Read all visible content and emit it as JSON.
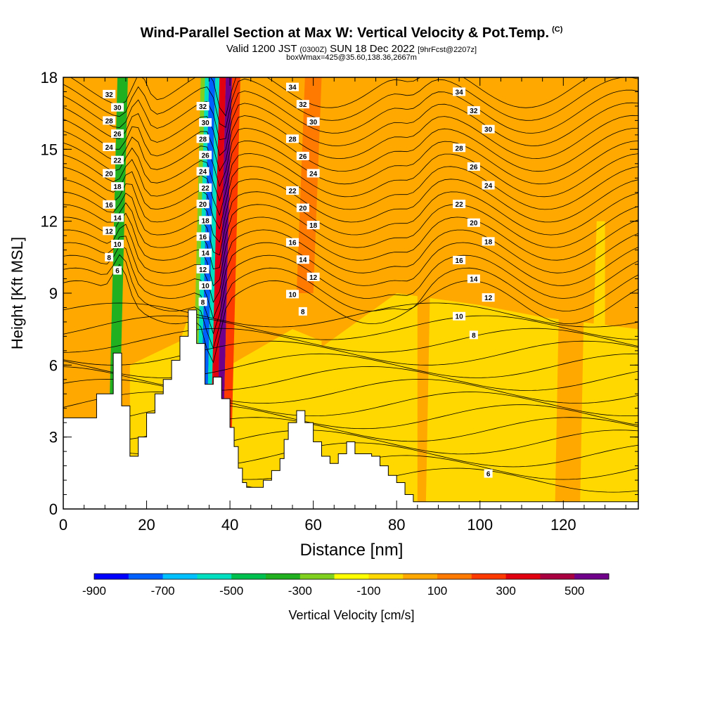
{
  "chart_data": {
    "type": "heatmap",
    "title": "Wind-Parallel Section at Max W: Vertical Velocity & Pot.Temp.",
    "title_mark": "(C)",
    "subtitle_main_a": "Valid 1200 JST",
    "subtitle_small_a": "(0300Z)",
    "subtitle_main_b": "SUN 18 Dec 2022",
    "subtitle_small_b": "[9hrFcst@2207z]",
    "subtitle2": "boxWmax=425@35.60,138.36,2667m",
    "xlabel": "Distance [nm]",
    "ylabel": "Height [Kft MSL]",
    "xlim": [
      0,
      138
    ],
    "ylim": [
      0,
      18
    ],
    "x_ticks": [
      0,
      20,
      40,
      60,
      80,
      100,
      120
    ],
    "y_ticks": [
      0,
      3,
      6,
      9,
      12,
      15,
      18
    ],
    "colorbar": {
      "label": "Vertical Velocity [cm/s]",
      "tick_labels": [
        "-900",
        "-700",
        "-500",
        "-300",
        "-100",
        "100",
        "300",
        "500"
      ],
      "bins": [
        -900,
        -800,
        -700,
        -600,
        -500,
        -400,
        -300,
        -200,
        -100,
        0,
        100,
        200,
        300,
        400,
        500,
        600
      ],
      "colors": [
        "#0000ff",
        "#0060ff",
        "#00c0ff",
        "#00e0c0",
        "#00c050",
        "#20b020",
        "#80d020",
        "#ffff00",
        "#ffd800",
        "#ffa800",
        "#ff7a00",
        "#ff3a00",
        "#e00010",
        "#a80040",
        "#70008a"
      ]
    },
    "terrain": [
      [
        0,
        3.8
      ],
      [
        8,
        3.8
      ],
      [
        8,
        4.8
      ],
      [
        12,
        4.8
      ],
      [
        12,
        6.5
      ],
      [
        14,
        6.5
      ],
      [
        14,
        4.3
      ],
      [
        16,
        4.3
      ],
      [
        16,
        2.2
      ],
      [
        18,
        2.2
      ],
      [
        18,
        3
      ],
      [
        20,
        3
      ],
      [
        20,
        4
      ],
      [
        22,
        4
      ],
      [
        22,
        4.8
      ],
      [
        24,
        4.8
      ],
      [
        24,
        5.4
      ],
      [
        26,
        5.4
      ],
      [
        26,
        6.2
      ],
      [
        28,
        6.2
      ],
      [
        28,
        7.2
      ],
      [
        30,
        7.2
      ],
      [
        30,
        8.3
      ],
      [
        32,
        8.3
      ],
      [
        32,
        6.9
      ],
      [
        34,
        6.9
      ],
      [
        34,
        5.2
      ],
      [
        36,
        5.2
      ],
      [
        36,
        5.5
      ],
      [
        38,
        5.5
      ],
      [
        38,
        4.6
      ],
      [
        40,
        4.6
      ],
      [
        40,
        3.4
      ],
      [
        41,
        3.4
      ],
      [
        41,
        2.6
      ],
      [
        42,
        2.6
      ],
      [
        42,
        1.7
      ],
      [
        43,
        1.7
      ],
      [
        43,
        1.1
      ],
      [
        44,
        1.1
      ],
      [
        44,
        0.9
      ],
      [
        48,
        0.9
      ],
      [
        48,
        1.2
      ],
      [
        50,
        1.2
      ],
      [
        50,
        1.6
      ],
      [
        52,
        1.6
      ],
      [
        52,
        2.1
      ],
      [
        53,
        2.1
      ],
      [
        53,
        2.9
      ],
      [
        54,
        2.9
      ],
      [
        54,
        3.6
      ],
      [
        56,
        3.6
      ],
      [
        56,
        4.1
      ],
      [
        58,
        4.1
      ],
      [
        58,
        3.6
      ],
      [
        60,
        3.6
      ],
      [
        60,
        2.8
      ],
      [
        62,
        2.8
      ],
      [
        62,
        2.2
      ],
      [
        64,
        2.2
      ],
      [
        64,
        1.9
      ],
      [
        66,
        1.9
      ],
      [
        66,
        2.3
      ],
      [
        68,
        2.3
      ],
      [
        68,
        2.8
      ],
      [
        70,
        2.8
      ],
      [
        70,
        2.3
      ],
      [
        74,
        2.3
      ],
      [
        74,
        2.2
      ],
      [
        76,
        2.2
      ],
      [
        76,
        1.8
      ],
      [
        78,
        1.8
      ],
      [
        78,
        1.4
      ],
      [
        80,
        1.4
      ],
      [
        80,
        1.1
      ],
      [
        82,
        1.1
      ],
      [
        82,
        0.6
      ],
      [
        84,
        0.6
      ],
      [
        84,
        0.3
      ],
      [
        138,
        0.3
      ]
    ],
    "theta_label_values": [
      "32",
      "30",
      "28",
      "26",
      "24",
      "22",
      "20",
      "18",
      "16",
      "14",
      "12",
      "10",
      "8"
    ],
    "theta_labels_left": [
      "32",
      "30",
      "28",
      "26",
      "24",
      "22",
      "20",
      "18",
      "16",
      "14",
      "12",
      "10",
      "8",
      "6"
    ],
    "theta_labels_core": [
      "32",
      "30",
      "28",
      "26",
      "24",
      "22",
      "20",
      "18",
      "16",
      "14",
      "12",
      "10",
      "8"
    ],
    "theta_labels_mid": [
      "34",
      "32",
      "30",
      "28",
      "26",
      "24",
      "22",
      "20",
      "18",
      "16",
      "14",
      "12",
      "10",
      "8"
    ],
    "theta_labels_right": [
      "34",
      "32",
      "30",
      "28",
      "26",
      "24",
      "22",
      "20",
      "18",
      "16",
      "14",
      "12",
      "10",
      "8",
      "6"
    ],
    "vv_bands": [
      {
        "x_from": 10.5,
        "x_to": 13,
        "value": -350
      },
      {
        "x_from": 30.5,
        "x_to": 31.5,
        "value": -300
      },
      {
        "x_from": 31.5,
        "x_to": 32.5,
        "value": -550
      },
      {
        "x_from": 32.5,
        "x_to": 34,
        "value": -750
      },
      {
        "x_from": 34,
        "x_to": 35,
        "value": -550
      },
      {
        "x_from": 35,
        "x_to": 36.5,
        "value": 350
      },
      {
        "x_from": 36.5,
        "x_to": 38,
        "value": 550
      },
      {
        "x_from": 38,
        "x_to": 40,
        "value": 250
      }
    ]
  }
}
